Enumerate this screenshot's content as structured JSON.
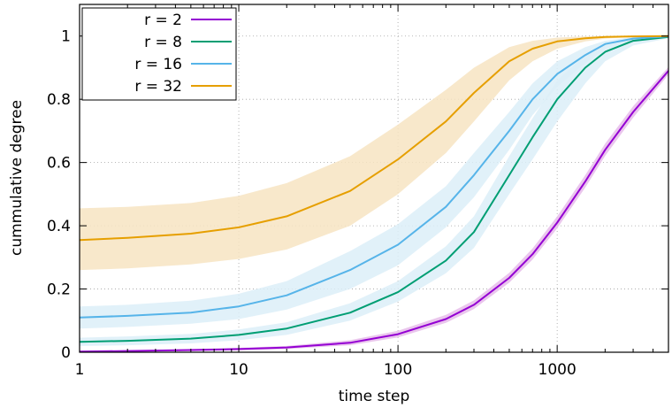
{
  "chart_data": {
    "type": "line",
    "xlabel": "time step",
    "ylabel": "cummulative degree",
    "x_scale": "log",
    "xlim": [
      1,
      5000
    ],
    "ylim": [
      0,
      1.1
    ],
    "x_ticks": [
      1,
      10,
      100,
      1000
    ],
    "x_tick_labels": [
      "1",
      "10",
      "100",
      "1000"
    ],
    "y_ticks": [
      0,
      0.2,
      0.4,
      0.6,
      0.8,
      1
    ],
    "y_tick_labels": [
      "0",
      "0.2",
      "0.4",
      "0.6",
      "0.8",
      "1"
    ],
    "grid": true,
    "legend_position": "top-left",
    "x": [
      1,
      2,
      5,
      10,
      20,
      50,
      100,
      200,
      300,
      500,
      700,
      1000,
      1500,
      2000,
      3000,
      5000
    ],
    "series": [
      {
        "name": "r = 2",
        "color": "#9400d3",
        "band_color": "#e6bcea",
        "values": [
          0.002,
          0.004,
          0.007,
          0.01,
          0.015,
          0.03,
          0.057,
          0.105,
          0.15,
          0.235,
          0.31,
          0.41,
          0.54,
          0.64,
          0.76,
          0.89
        ],
        "lower": [
          0.0,
          0.002,
          0.004,
          0.006,
          0.01,
          0.022,
          0.047,
          0.093,
          0.137,
          0.22,
          0.293,
          0.392,
          0.521,
          0.621,
          0.742,
          0.878
        ],
        "upper": [
          0.004,
          0.006,
          0.01,
          0.014,
          0.02,
          0.038,
          0.068,
          0.118,
          0.164,
          0.251,
          0.328,
          0.43,
          0.56,
          0.66,
          0.778,
          0.902
        ]
      },
      {
        "name": "r = 8",
        "color": "#009e73",
        "band_color": "#dceef8",
        "values": [
          0.033,
          0.036,
          0.043,
          0.055,
          0.075,
          0.125,
          0.19,
          0.29,
          0.38,
          0.56,
          0.68,
          0.8,
          0.9,
          0.95,
          0.985,
          0.997
        ],
        "lower": [
          0.02,
          0.022,
          0.028,
          0.038,
          0.055,
          0.1,
          0.16,
          0.25,
          0.33,
          0.5,
          0.61,
          0.73,
          0.85,
          0.92,
          0.97,
          0.993
        ],
        "upper": [
          0.046,
          0.05,
          0.058,
          0.072,
          0.095,
          0.155,
          0.225,
          0.335,
          0.43,
          0.62,
          0.74,
          0.86,
          0.94,
          0.975,
          0.995,
          1.0
        ]
      },
      {
        "name": "r = 16",
        "color": "#56b4e9",
        "band_color": "#dceef8",
        "values": [
          0.11,
          0.115,
          0.125,
          0.145,
          0.18,
          0.26,
          0.34,
          0.46,
          0.56,
          0.7,
          0.8,
          0.88,
          0.94,
          0.975,
          0.992,
          0.999
        ],
        "lower": [
          0.075,
          0.08,
          0.09,
          0.105,
          0.135,
          0.2,
          0.275,
          0.395,
          0.49,
          0.64,
          0.75,
          0.84,
          0.915,
          0.96,
          0.985,
          0.997
        ],
        "upper": [
          0.145,
          0.15,
          0.163,
          0.185,
          0.225,
          0.32,
          0.405,
          0.525,
          0.63,
          0.76,
          0.85,
          0.92,
          0.965,
          0.985,
          0.997,
          1.0
        ]
      },
      {
        "name": "r = 32",
        "color": "#e69f00",
        "band_color": "#f7e4c2",
        "values": [
          0.355,
          0.362,
          0.375,
          0.395,
          0.43,
          0.51,
          0.61,
          0.73,
          0.82,
          0.92,
          0.96,
          0.983,
          0.993,
          0.997,
          0.999,
          1.0
        ],
        "lower": [
          0.26,
          0.265,
          0.278,
          0.295,
          0.325,
          0.4,
          0.5,
          0.63,
          0.73,
          0.86,
          0.92,
          0.96,
          0.983,
          0.992,
          0.997,
          0.999
        ],
        "upper": [
          0.455,
          0.46,
          0.472,
          0.495,
          0.535,
          0.62,
          0.72,
          0.83,
          0.9,
          0.965,
          0.985,
          0.995,
          0.999,
          1.0,
          1.0,
          1.0
        ]
      }
    ]
  }
}
